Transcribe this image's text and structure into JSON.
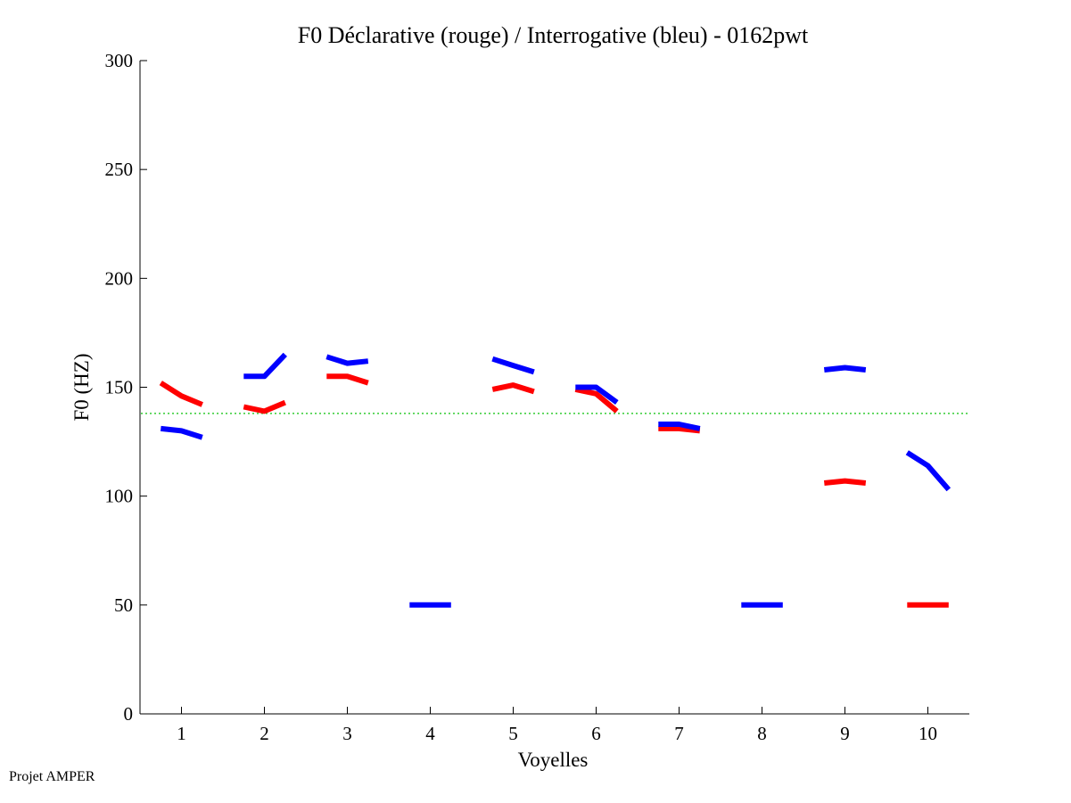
{
  "chart_data": {
    "type": "line",
    "title": "F0 Déclarative (rouge) / Interrogative (bleu) - 0162pwt",
    "xlabel": "Voyelles",
    "ylabel": "F0 (HZ)",
    "xlim": [
      0.5,
      10.5
    ],
    "ylim": [
      0,
      300
    ],
    "xticks": [
      1,
      2,
      3,
      4,
      5,
      6,
      7,
      8,
      9,
      10
    ],
    "yticks": [
      0,
      50,
      100,
      150,
      200,
      250,
      300
    ],
    "grid": false,
    "reference_line": {
      "y": 138,
      "color": "#33cc33",
      "style": "dotted"
    },
    "series": [
      {
        "color": "#ff0000",
        "segments": [
          {
            "vowel": 1,
            "points": [
              [
                0.75,
                152
              ],
              [
                1.0,
                146
              ],
              [
                1.25,
                142
              ]
            ]
          },
          {
            "vowel": 2,
            "points": [
              [
                1.75,
                141
              ],
              [
                2.0,
                139
              ],
              [
                2.25,
                143
              ]
            ]
          },
          {
            "vowel": 3,
            "points": [
              [
                2.75,
                155
              ],
              [
                3.0,
                155
              ],
              [
                3.25,
                152
              ]
            ]
          },
          {
            "vowel": 5,
            "points": [
              [
                4.75,
                149
              ],
              [
                5.0,
                151
              ],
              [
                5.25,
                148
              ]
            ]
          },
          {
            "vowel": 6,
            "points": [
              [
                5.75,
                149
              ],
              [
                6.0,
                147
              ],
              [
                6.25,
                139
              ]
            ]
          },
          {
            "vowel": 7,
            "points": [
              [
                6.75,
                131
              ],
              [
                7.0,
                131
              ],
              [
                7.25,
                130
              ]
            ]
          },
          {
            "vowel": 9,
            "points": [
              [
                8.75,
                106
              ],
              [
                9.0,
                107
              ],
              [
                9.25,
                106
              ]
            ]
          },
          {
            "vowel": 10,
            "points": [
              [
                9.75,
                50
              ],
              [
                10.0,
                50
              ],
              [
                10.25,
                50
              ]
            ]
          }
        ]
      },
      {
        "color": "#0000ff",
        "segments": [
          {
            "vowel": 1,
            "points": [
              [
                0.75,
                131
              ],
              [
                1.0,
                130
              ],
              [
                1.25,
                127
              ]
            ]
          },
          {
            "vowel": 2,
            "points": [
              [
                1.75,
                155
              ],
              [
                2.0,
                155
              ],
              [
                2.25,
                165
              ]
            ]
          },
          {
            "vowel": 3,
            "points": [
              [
                2.75,
                164
              ],
              [
                3.0,
                161
              ],
              [
                3.25,
                162
              ]
            ]
          },
          {
            "vowel": 4,
            "points": [
              [
                3.75,
                50
              ],
              [
                4.0,
                50
              ],
              [
                4.25,
                50
              ]
            ]
          },
          {
            "vowel": 5,
            "points": [
              [
                4.75,
                163
              ],
              [
                5.0,
                160
              ],
              [
                5.25,
                157
              ]
            ]
          },
          {
            "vowel": 6,
            "points": [
              [
                5.75,
                150
              ],
              [
                6.0,
                150
              ],
              [
                6.25,
                143
              ]
            ]
          },
          {
            "vowel": 7,
            "points": [
              [
                6.75,
                133
              ],
              [
                7.0,
                133
              ],
              [
                7.25,
                131
              ]
            ]
          },
          {
            "vowel": 8,
            "points": [
              [
                7.75,
                50
              ],
              [
                8.0,
                50
              ],
              [
                8.25,
                50
              ]
            ]
          },
          {
            "vowel": 9,
            "points": [
              [
                8.75,
                158
              ],
              [
                9.0,
                159
              ],
              [
                9.25,
                158
              ]
            ]
          },
          {
            "vowel": 10,
            "points": [
              [
                9.75,
                120
              ],
              [
                10.0,
                114
              ],
              [
                10.25,
                103
              ]
            ]
          }
        ]
      }
    ]
  },
  "footer": {
    "credit": "Projet AMPER"
  }
}
